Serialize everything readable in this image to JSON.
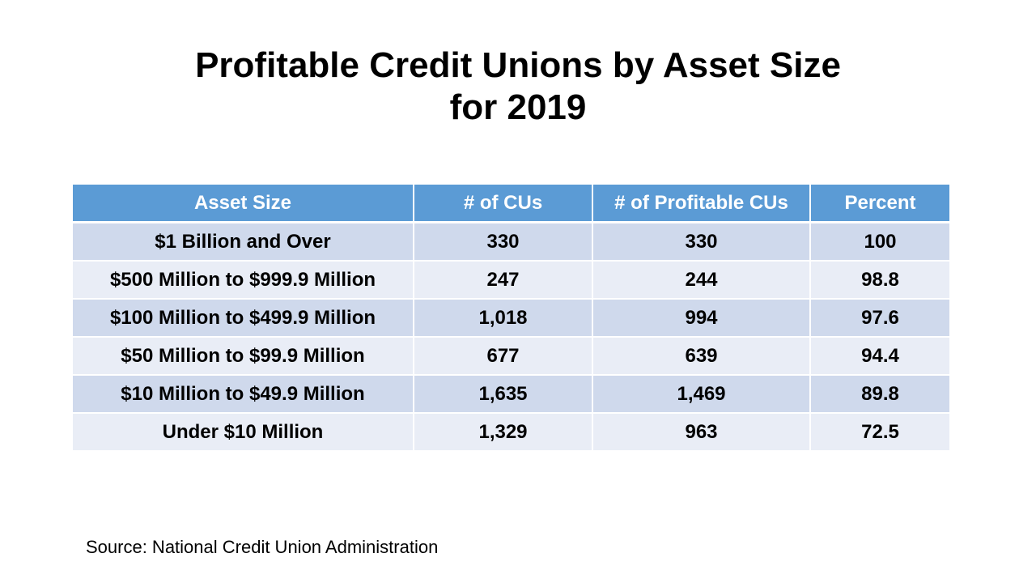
{
  "slide": {
    "title_line1": "Profitable Credit Unions by Asset Size",
    "title_line2": "for 2019",
    "source": "Source: National Credit Union Administration"
  },
  "table": {
    "headers": [
      "Asset Size",
      "# of CUs",
      "# of Profitable CUs",
      "Percent"
    ],
    "rows": [
      [
        "$1 Billion and Over",
        "330",
        "330",
        "100"
      ],
      [
        "$500 Million to $999.9 Million",
        "247",
        "244",
        "98.8"
      ],
      [
        "$100 Million to $499.9 Million",
        "1,018",
        "994",
        "97.6"
      ],
      [
        "$50 Million to $99.9 Million",
        "677",
        "639",
        "94.4"
      ],
      [
        "$10 Million to $49.9 Million",
        "1,635",
        "1,469",
        "89.8"
      ],
      [
        "Under $10 Million",
        "1,329",
        "963",
        "72.5"
      ]
    ]
  },
  "colors": {
    "header_background": "#5b9bd5",
    "row_band_dark": "#cfd9ec",
    "row_band_light": "#e9edf6"
  }
}
